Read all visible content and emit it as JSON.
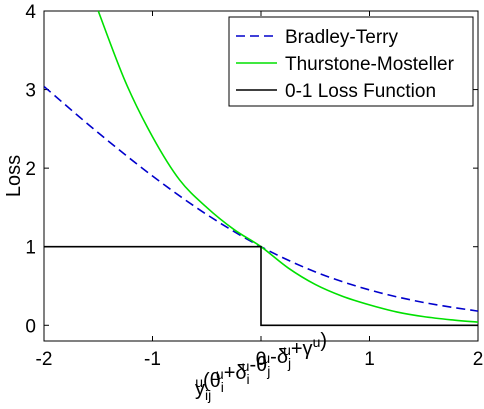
{
  "chart_data": {
    "type": "line",
    "title": "",
    "ylabel": "Loss",
    "xlabel": {
      "base": "y",
      "parts": [
        {
          "t": "y"
        },
        {
          "t": "ij",
          "sub": true
        },
        {
          "t": "u",
          "sup": true
        },
        {
          "t": "(θ"
        },
        {
          "t": "i",
          "sub": true
        },
        {
          "t": "u",
          "sup": true
        },
        {
          "t": "+δ"
        },
        {
          "t": "i",
          "sub": true
        },
        {
          "t": "u",
          "sup": true
        },
        {
          "t": "-θ"
        },
        {
          "t": "j",
          "sub": true
        },
        {
          "t": "u",
          "sup": true
        },
        {
          "t": "-δ"
        },
        {
          "t": "j",
          "sub": true
        },
        {
          "t": "u",
          "sup": true
        },
        {
          "t": "+γ"
        },
        {
          "t": "u",
          "sup": true
        },
        {
          "t": ")"
        }
      ]
    },
    "xlim": [
      -2,
      2
    ],
    "ylim": [
      -0.2,
      4
    ],
    "xticks": [
      -2,
      -1,
      0,
      1,
      2
    ],
    "xtick_labels": [
      "-2",
      "-1",
      "0",
      "1",
      "2"
    ],
    "yticks": [
      0,
      1,
      2,
      3,
      4
    ],
    "ytick_labels": [
      "0",
      "1",
      "2",
      "3",
      "4"
    ],
    "legend_position": "top-right",
    "series": [
      {
        "name": "Bradley-Terry",
        "color": "#0000cc",
        "style": "dashed",
        "x": [
          -2.0,
          -1.5,
          -1.0,
          -0.5,
          0.0,
          0.5,
          1.0,
          1.5,
          2.0
        ],
        "y": [
          3.04,
          2.45,
          1.9,
          1.41,
          1.0,
          0.68,
          0.45,
          0.29,
          0.18
        ]
      },
      {
        "name": "Thurstone-Mosteller",
        "color": "#00e000",
        "style": "solid",
        "x": [
          -1.5,
          -1.25,
          -1.0,
          -0.75,
          -0.5,
          -0.25,
          0.0,
          0.25,
          0.5,
          0.75,
          1.0,
          1.25,
          1.5,
          1.75,
          2.0
        ],
        "y": [
          4.0,
          3.1,
          2.4,
          1.85,
          1.5,
          1.22,
          1.0,
          0.73,
          0.52,
          0.37,
          0.26,
          0.17,
          0.11,
          0.07,
          0.04
        ]
      },
      {
        "name": "0-1 Loss Function",
        "color": "#000000",
        "style": "solid",
        "x": [
          -2.0,
          0.0,
          0.0,
          2.0
        ],
        "y": [
          1.0,
          1.0,
          0.0,
          0.0
        ]
      }
    ]
  }
}
